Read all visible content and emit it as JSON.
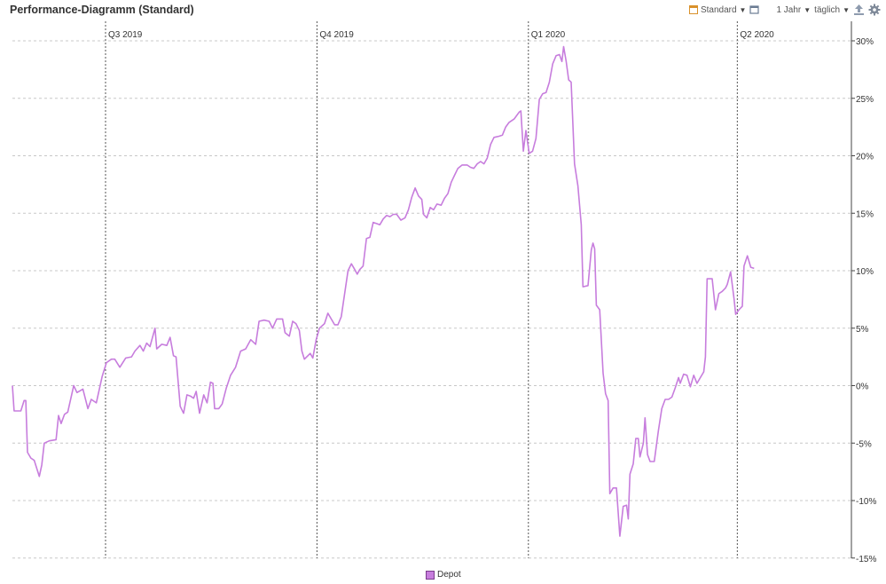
{
  "header": {
    "title": "Performance-Diagramm (Standard)",
    "view_label": "Standard",
    "period_label": "1 Jahr",
    "interval_label": "täglich"
  },
  "icons": {
    "view": "calendar-icon",
    "window": "window-icon",
    "export": "export-icon",
    "settings": "gear-icon"
  },
  "colors": {
    "series": "#c77ddd",
    "series_border": "#7a3c8c",
    "axis": "#444444"
  },
  "legend": {
    "label": "Depot"
  },
  "chart_data": {
    "type": "line",
    "ylim": [
      -15,
      31
    ],
    "yticks": [
      30,
      25,
      20,
      15,
      10,
      5,
      0,
      -5,
      -10,
      -15
    ],
    "ytick_labels": [
      "30%",
      "25%",
      "20%",
      "15%",
      "10%",
      "5%",
      "0%",
      "-5%",
      "-10%",
      "-15%"
    ],
    "quarters": [
      {
        "label": "Q3 2019",
        "x": 0.111
      },
      {
        "label": "Q4 2019",
        "x": 0.363
      },
      {
        "label": "Q1 2020",
        "x": 0.615
      },
      {
        "label": "Q2 2020",
        "x": 0.864
      }
    ],
    "grid": true,
    "legend_position": "bottom-center",
    "series": [
      {
        "name": "Depot",
        "values": [
          [
            0.0,
            0.0
          ],
          [
            0.002,
            -2.2
          ],
          [
            0.01,
            -2.2
          ],
          [
            0.014,
            -1.3
          ],
          [
            0.016,
            -1.3
          ],
          [
            0.018,
            -5.8
          ],
          [
            0.022,
            -6.3
          ],
          [
            0.026,
            -6.5
          ],
          [
            0.032,
            -7.9
          ],
          [
            0.035,
            -6.9
          ],
          [
            0.038,
            -5.0
          ],
          [
            0.044,
            -4.8
          ],
          [
            0.052,
            -4.7
          ],
          [
            0.055,
            -2.6
          ],
          [
            0.058,
            -3.3
          ],
          [
            0.062,
            -2.5
          ],
          [
            0.066,
            -2.3
          ],
          [
            0.07,
            -1.0
          ],
          [
            0.073,
            0.0
          ],
          [
            0.077,
            -0.6
          ],
          [
            0.084,
            -0.3
          ],
          [
            0.09,
            -2.0
          ],
          [
            0.094,
            -1.2
          ],
          [
            0.1,
            -1.5
          ],
          [
            0.107,
            0.8
          ],
          [
            0.112,
            2.0
          ],
          [
            0.118,
            2.3
          ],
          [
            0.122,
            2.3
          ],
          [
            0.128,
            1.6
          ],
          [
            0.135,
            2.4
          ],
          [
            0.142,
            2.5
          ],
          [
            0.146,
            3.0
          ],
          [
            0.152,
            3.5
          ],
          [
            0.156,
            3.0
          ],
          [
            0.16,
            3.7
          ],
          [
            0.164,
            3.4
          ],
          [
            0.17,
            5.0
          ],
          [
            0.172,
            3.2
          ],
          [
            0.178,
            3.6
          ],
          [
            0.184,
            3.5
          ],
          [
            0.188,
            4.2
          ],
          [
            0.192,
            2.6
          ],
          [
            0.195,
            2.5
          ],
          [
            0.2,
            -1.8
          ],
          [
            0.204,
            -2.4
          ],
          [
            0.208,
            -0.8
          ],
          [
            0.212,
            -0.9
          ],
          [
            0.216,
            -1.1
          ],
          [
            0.219,
            -0.5
          ],
          [
            0.223,
            -2.4
          ],
          [
            0.228,
            -0.8
          ],
          [
            0.232,
            -1.5
          ],
          [
            0.236,
            0.3
          ],
          [
            0.239,
            0.2
          ],
          [
            0.241,
            -2.0
          ],
          [
            0.246,
            -2.0
          ],
          [
            0.25,
            -1.6
          ],
          [
            0.255,
            -0.2
          ],
          [
            0.26,
            0.9
          ],
          [
            0.266,
            1.6
          ],
          [
            0.272,
            3.0
          ],
          [
            0.278,
            3.2
          ],
          [
            0.284,
            4.0
          ],
          [
            0.29,
            3.6
          ],
          [
            0.294,
            5.6
          ],
          [
            0.3,
            5.7
          ],
          [
            0.306,
            5.6
          ],
          [
            0.31,
            5.0
          ],
          [
            0.315,
            5.8
          ],
          [
            0.322,
            5.8
          ],
          [
            0.325,
            4.6
          ],
          [
            0.33,
            4.3
          ],
          [
            0.334,
            5.6
          ],
          [
            0.338,
            5.4
          ],
          [
            0.342,
            4.8
          ],
          [
            0.345,
            3.0
          ],
          [
            0.348,
            2.3
          ],
          [
            0.355,
            2.8
          ],
          [
            0.358,
            2.4
          ],
          [
            0.362,
            4.0
          ],
          [
            0.366,
            5.0
          ],
          [
            0.372,
            5.4
          ],
          [
            0.376,
            6.3
          ],
          [
            0.38,
            5.8
          ],
          [
            0.384,
            5.3
          ],
          [
            0.388,
            5.3
          ],
          [
            0.392,
            6.0
          ],
          [
            0.396,
            8.0
          ],
          [
            0.4,
            10.0
          ],
          [
            0.404,
            10.6
          ],
          [
            0.408,
            10.1
          ],
          [
            0.411,
            9.7
          ],
          [
            0.414,
            10.1
          ],
          [
            0.418,
            10.4
          ],
          [
            0.422,
            12.8
          ],
          [
            0.426,
            12.9
          ],
          [
            0.43,
            14.2
          ],
          [
            0.434,
            14.1
          ],
          [
            0.438,
            14.0
          ],
          [
            0.442,
            14.5
          ],
          [
            0.446,
            14.8
          ],
          [
            0.45,
            14.7
          ],
          [
            0.454,
            14.9
          ],
          [
            0.458,
            14.9
          ],
          [
            0.463,
            14.4
          ],
          [
            0.468,
            14.6
          ],
          [
            0.472,
            15.3
          ],
          [
            0.476,
            16.4
          ],
          [
            0.48,
            17.2
          ],
          [
            0.484,
            16.5
          ],
          [
            0.488,
            16.2
          ],
          [
            0.49,
            14.9
          ],
          [
            0.494,
            14.6
          ],
          [
            0.498,
            15.5
          ],
          [
            0.502,
            15.3
          ],
          [
            0.506,
            15.8
          ],
          [
            0.511,
            15.7
          ],
          [
            0.515,
            16.3
          ],
          [
            0.519,
            16.7
          ],
          [
            0.523,
            17.7
          ],
          [
            0.527,
            18.3
          ],
          [
            0.531,
            18.9
          ],
          [
            0.536,
            19.2
          ],
          [
            0.542,
            19.2
          ],
          [
            0.546,
            19.0
          ],
          [
            0.55,
            18.9
          ],
          [
            0.554,
            19.3
          ],
          [
            0.558,
            19.5
          ],
          [
            0.562,
            19.3
          ],
          [
            0.566,
            19.8
          ],
          [
            0.57,
            21.0
          ],
          [
            0.574,
            21.6
          ],
          [
            0.58,
            21.7
          ],
          [
            0.584,
            21.8
          ],
          [
            0.588,
            22.5
          ],
          [
            0.592,
            22.9
          ],
          [
            0.598,
            23.2
          ],
          [
            0.604,
            23.8
          ],
          [
            0.606,
            23.9
          ],
          [
            0.609,
            20.4
          ],
          [
            0.612,
            22.2
          ],
          [
            0.616,
            20.2
          ],
          [
            0.62,
            20.4
          ],
          [
            0.624,
            21.5
          ],
          [
            0.628,
            24.9
          ],
          [
            0.632,
            25.4
          ],
          [
            0.636,
            25.5
          ],
          [
            0.64,
            26.4
          ],
          [
            0.644,
            28.0
          ],
          [
            0.648,
            28.7
          ],
          [
            0.652,
            28.8
          ],
          [
            0.655,
            28.2
          ],
          [
            0.657,
            29.5
          ],
          [
            0.66,
            28.2
          ],
          [
            0.663,
            26.6
          ],
          [
            0.666,
            26.4
          ],
          [
            0.67,
            19.3
          ],
          [
            0.674,
            17.4
          ],
          [
            0.678,
            14.0
          ],
          [
            0.68,
            8.6
          ],
          [
            0.686,
            8.7
          ],
          [
            0.69,
            11.8
          ],
          [
            0.692,
            12.4
          ],
          [
            0.694,
            11.9
          ],
          [
            0.696,
            7.0
          ],
          [
            0.7,
            6.6
          ],
          [
            0.704,
            1.1
          ],
          [
            0.707,
            -0.7
          ],
          [
            0.71,
            -1.3
          ],
          [
            0.712,
            -9.4
          ],
          [
            0.716,
            -8.9
          ],
          [
            0.72,
            -8.9
          ],
          [
            0.724,
            -13.1
          ],
          [
            0.728,
            -10.5
          ],
          [
            0.732,
            -10.4
          ],
          [
            0.734,
            -11.6
          ],
          [
            0.736,
            -7.7
          ],
          [
            0.74,
            -6.8
          ],
          [
            0.743,
            -4.6
          ],
          [
            0.746,
            -4.6
          ],
          [
            0.748,
            -6.2
          ],
          [
            0.752,
            -5.0
          ],
          [
            0.754,
            -2.8
          ],
          [
            0.757,
            -6.0
          ],
          [
            0.76,
            -6.6
          ],
          [
            0.765,
            -6.6
          ],
          [
            0.77,
            -3.9
          ],
          [
            0.774,
            -2.0
          ],
          [
            0.778,
            -1.2
          ],
          [
            0.782,
            -1.2
          ],
          [
            0.786,
            -1.0
          ],
          [
            0.79,
            -0.2
          ],
          [
            0.794,
            0.7
          ],
          [
            0.796,
            0.2
          ],
          [
            0.8,
            1.0
          ],
          [
            0.804,
            0.9
          ],
          [
            0.808,
            -0.1
          ],
          [
            0.812,
            0.9
          ],
          [
            0.816,
            0.2
          ],
          [
            0.82,
            0.7
          ],
          [
            0.824,
            1.2
          ],
          [
            0.826,
            2.5
          ],
          [
            0.828,
            9.3
          ],
          [
            0.834,
            9.3
          ],
          [
            0.838,
            6.6
          ],
          [
            0.842,
            8.0
          ],
          [
            0.846,
            8.2
          ],
          [
            0.85,
            8.5
          ],
          [
            0.852,
            8.8
          ],
          [
            0.856,
            9.9
          ],
          [
            0.86,
            7.6
          ],
          [
            0.862,
            6.2
          ],
          [
            0.866,
            6.6
          ],
          [
            0.87,
            6.9
          ],
          [
            0.872,
            10.4
          ],
          [
            0.876,
            11.3
          ],
          [
            0.88,
            10.3
          ],
          [
            0.884,
            10.2
          ]
        ]
      }
    ]
  }
}
